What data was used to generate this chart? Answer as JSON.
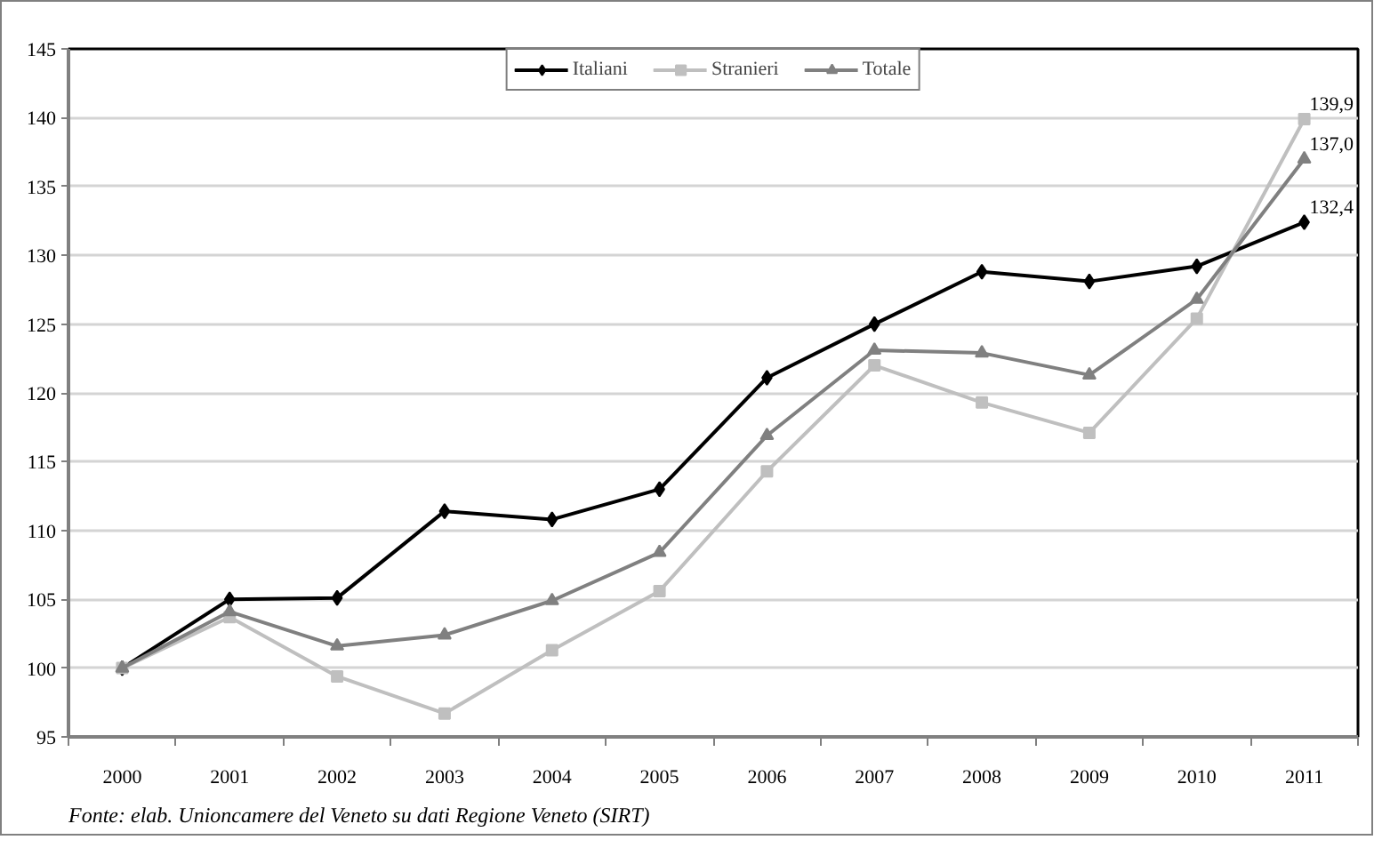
{
  "chart_data": {
    "type": "line",
    "categories": [
      "2000",
      "2001",
      "2002",
      "2003",
      "2004",
      "2005",
      "2006",
      "2007",
      "2008",
      "2009",
      "2010",
      "2011"
    ],
    "ylim": [
      95,
      145
    ],
    "yticks": [
      95,
      100,
      105,
      110,
      115,
      120,
      125,
      130,
      135,
      140,
      145
    ],
    "grid": "y",
    "legend": "top",
    "line_style": "solid",
    "series": [
      {
        "name": "Italiani",
        "color": "#000000",
        "marker": "diamond",
        "values": [
          100,
          105.0,
          105.1,
          111.4,
          110.8,
          113.0,
          121.1,
          125.0,
          128.8,
          128.1,
          129.2,
          132.4
        ],
        "value_labels": [
          null,
          null,
          null,
          null,
          null,
          null,
          null,
          null,
          null,
          null,
          null,
          "132,4"
        ]
      },
      {
        "name": "Stranieri",
        "color": "#bfbfbf",
        "marker": "square",
        "values": [
          100,
          103.7,
          99.4,
          96.7,
          101.3,
          105.6,
          114.3,
          122.0,
          119.3,
          117.1,
          125.4,
          139.9
        ],
        "value_labels": [
          null,
          null,
          null,
          null,
          null,
          null,
          null,
          null,
          null,
          null,
          null,
          "139,9"
        ]
      },
      {
        "name": "Totale",
        "color": "#808080",
        "marker": "triangle",
        "values": [
          100,
          104.1,
          101.6,
          102.4,
          104.9,
          108.4,
          116.9,
          123.1,
          122.9,
          121.3,
          126.8,
          137.0
        ],
        "value_labels": [
          null,
          null,
          null,
          null,
          null,
          null,
          null,
          null,
          null,
          null,
          null,
          "137,0"
        ]
      }
    ],
    "annotations": [
      "Fonte: elab. Unioncamere del Veneto su dati Regione Veneto (SIRT)"
    ]
  }
}
